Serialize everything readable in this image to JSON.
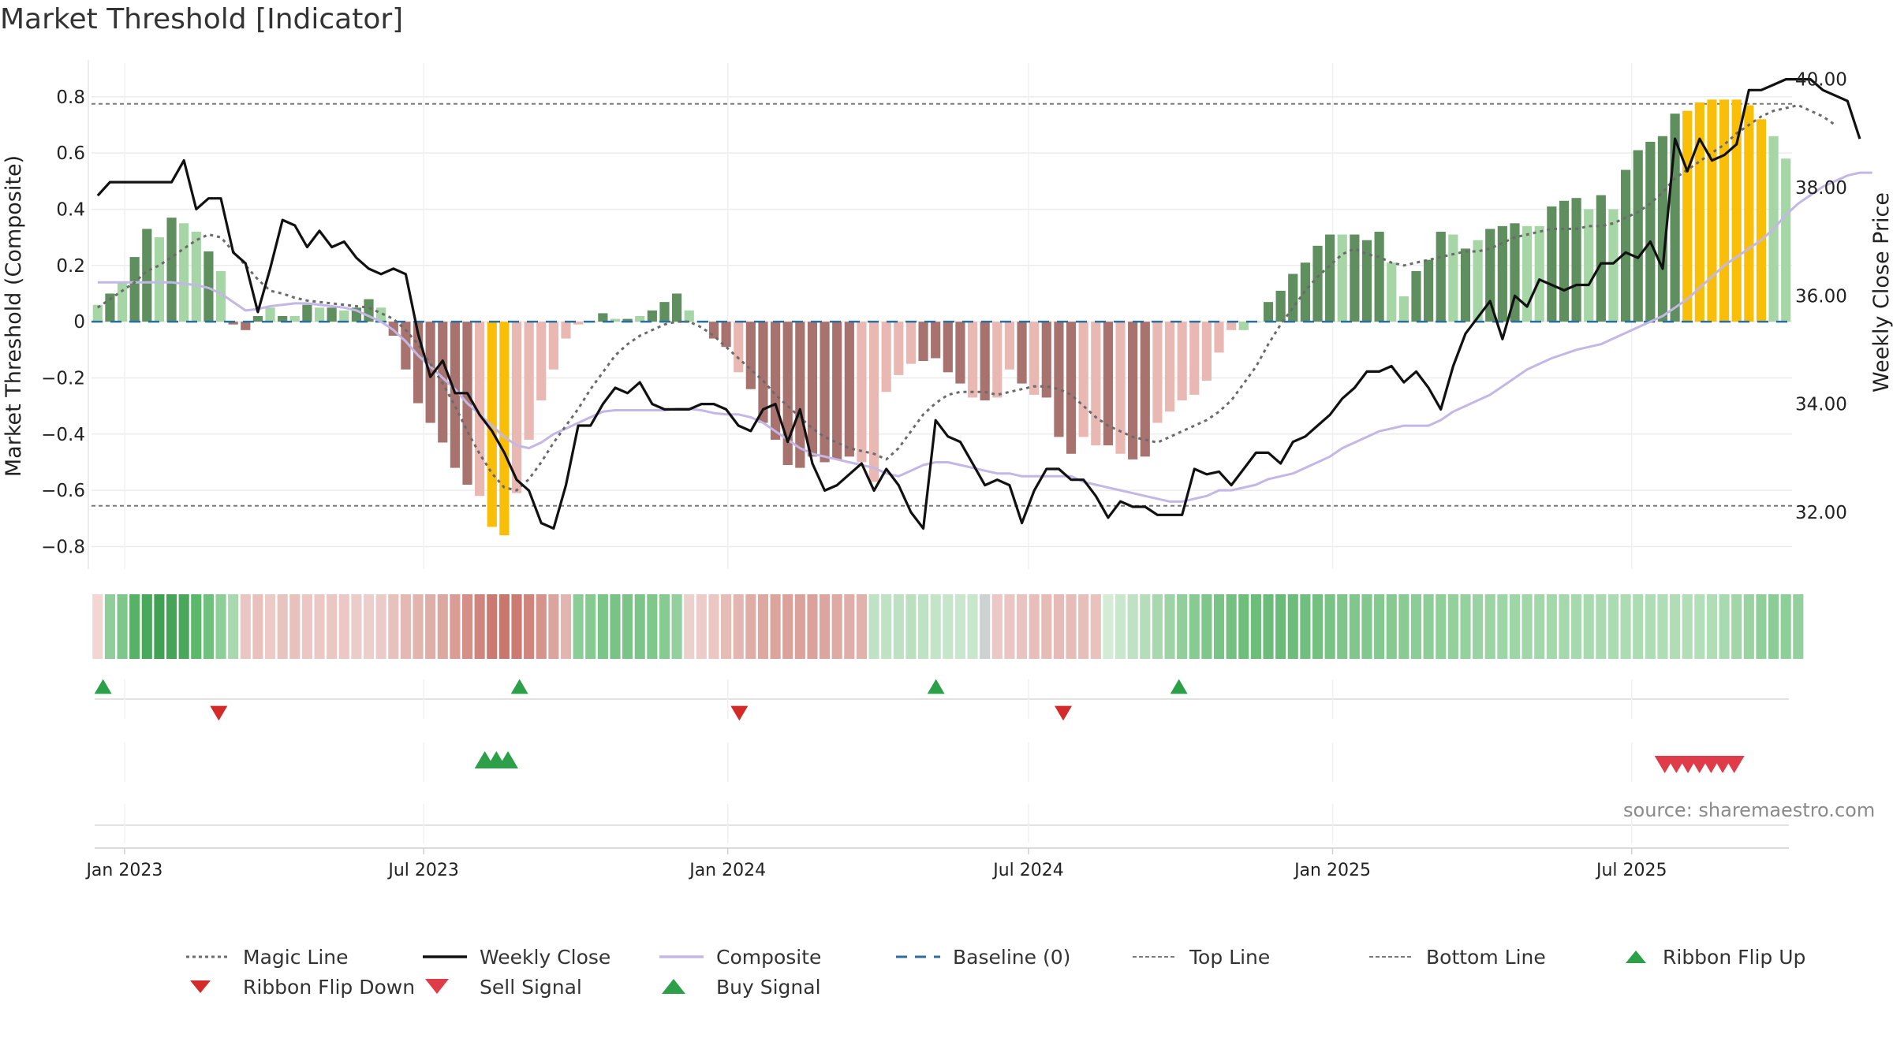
{
  "title": "Market Threshold [Indicator]",
  "source_note": "source: sharemaestro.com",
  "colors": {
    "dark_green": "#5f8e5f",
    "light_green": "#a6d5a6",
    "dark_red": "#a8736f",
    "light_red": "#e9b8b2",
    "gold": "#f9bf08",
    "weekly_close": "#111111",
    "composite": "#c3b7e6",
    "magic_line": "#6b6b6b",
    "baseline": "#2a6f9e",
    "threshold_lines": "#7a7a7a",
    "buy": "#2ca048",
    "sell": "#e03b48",
    "flip_down": "#d32a2a"
  },
  "chart_data": {
    "type": "bar",
    "title": "Market Threshold [Indicator]",
    "ylabel": "Market Threshold (Composite)",
    "y2label": "Weekly Close Price",
    "ylim": [
      -0.88,
      0.92
    ],
    "y2lim": [
      30.95,
      40.3
    ],
    "yticks": [
      0.8,
      0.6,
      0.4,
      0.2,
      0,
      -0.2,
      -0.4,
      -0.6,
      -0.8
    ],
    "ytick_labels": [
      "0.8",
      "0.6",
      "0.4",
      "0.2",
      "0",
      "−0.2",
      "−0.4",
      "−0.6",
      "−0.8"
    ],
    "y2ticks": [
      40,
      38,
      36,
      34,
      32
    ],
    "y2tick_labels": [
      "40.00",
      "38.00",
      "36.00",
      "34.00",
      "32.00"
    ],
    "top_line": 0.775,
    "bottom_line": -0.655,
    "x_range": [
      "2022-12-12",
      "2025-10-06"
    ],
    "xticks": [
      "2023-01-01",
      "2023-07-01",
      "2024-01-01",
      "2024-07-01",
      "2025-01-01",
      "2025-07-01"
    ],
    "xtick_labels": [
      "Jan 2023",
      "Jul 2023",
      "Jan 2024",
      "Jul 2024",
      "Jan 2025",
      "Jul 2025"
    ],
    "grid": true,
    "legend_placement": "bottom",
    "bars": {
      "values": [
        0.06,
        0.1,
        0.14,
        0.23,
        0.33,
        0.3,
        0.37,
        0.35,
        0.32,
        0.25,
        0.18,
        -0.01,
        -0.03,
        0.02,
        0.05,
        0.02,
        0.02,
        0.06,
        0.05,
        0.05,
        0.04,
        0.05,
        0.08,
        0.05,
        -0.05,
        -0.17,
        -0.29,
        -0.36,
        -0.43,
        -0.52,
        -0.58,
        -0.62,
        -0.73,
        -0.76,
        -0.61,
        -0.42,
        -0.28,
        -0.17,
        -0.06,
        -0.01,
        0,
        0.03,
        0.01,
        0.01,
        0.02,
        0.04,
        0.07,
        0.1,
        0.04,
        0,
        -0.06,
        -0.09,
        -0.18,
        -0.24,
        -0.36,
        -0.42,
        -0.51,
        -0.52,
        -0.48,
        -0.5,
        -0.49,
        -0.48,
        -0.5,
        -0.57,
        -0.25,
        -0.19,
        -0.15,
        -0.14,
        -0.13,
        -0.18,
        -0.22,
        -0.27,
        -0.28,
        -0.27,
        -0.17,
        -0.22,
        -0.26,
        -0.27,
        -0.41,
        -0.47,
        -0.41,
        -0.44,
        -0.44,
        -0.47,
        -0.49,
        -0.48,
        -0.36,
        -0.32,
        -0.28,
        -0.26,
        -0.21,
        -0.11,
        -0.03,
        -0.03,
        0,
        0.07,
        0.11,
        0.17,
        0.21,
        0.27,
        0.31,
        0.31,
        0.31,
        0.29,
        0.32,
        0.21,
        0.09,
        0.18,
        0.22,
        0.32,
        0.31,
        0.26,
        0.29,
        0.33,
        0.34,
        0.35,
        0.34,
        0.34,
        0.41,
        0.43,
        0.44,
        0.4,
        0.45,
        0.4,
        0.54,
        0.61,
        0.64,
        0.66,
        0.74,
        0.75,
        0.78,
        0.79,
        0.79,
        0.79,
        0.77,
        0.72,
        0.66,
        0.58
      ],
      "colors": [
        "lg",
        "dg",
        "lg",
        "dg",
        "dg",
        "lg",
        "dg",
        "lg",
        "lg",
        "dg",
        "lg",
        "dr",
        "dr",
        "dg",
        "lg",
        "dg",
        "lg",
        "dg",
        "lg",
        "dg",
        "lg",
        "dg",
        "dg",
        "lg",
        "dr",
        "dr",
        "dr",
        "dr",
        "dr",
        "dr",
        "dr",
        "lr",
        "gold",
        "gold",
        "lr",
        "lr",
        "lr",
        "lr",
        "lr",
        "lr",
        "dg",
        "dg",
        "lg",
        "dg",
        "lg",
        "dg",
        "dg",
        "dg",
        "lg",
        "dr",
        "dr",
        "dr",
        "lr",
        "dr",
        "dr",
        "dr",
        "dr",
        "dr",
        "dr",
        "dr",
        "dr",
        "dr",
        "lr",
        "lr",
        "lr",
        "lr",
        "lr",
        "dr",
        "dr",
        "dr",
        "dr",
        "lr",
        "dr",
        "lr",
        "lr",
        "dr",
        "lr",
        "dr",
        "dr",
        "dr",
        "lr",
        "lr",
        "dr",
        "lr",
        "dr",
        "dr",
        "lr",
        "lr",
        "lr",
        "lr",
        "lr",
        "lr",
        "lr",
        "lg",
        "lg",
        "dg",
        "dg",
        "dg",
        "dg",
        "dg",
        "dg",
        "lg",
        "dg",
        "dg",
        "dg",
        "lg",
        "lg",
        "dg",
        "dg",
        "dg",
        "lg",
        "dg",
        "lg",
        "dg",
        "dg",
        "dg",
        "lg",
        "lg",
        "dg",
        "dg",
        "dg",
        "lg",
        "dg",
        "lg",
        "dg",
        "dg",
        "dg",
        "dg",
        "dg",
        "gold",
        "gold",
        "gold",
        "gold",
        "gold",
        "gold",
        "gold",
        "lg",
        "lg",
        "lg"
      ]
    },
    "series": [
      {
        "name": "Weekly Close",
        "axis": "right",
        "values": [
          37.85,
          38.1,
          38.1,
          38.1,
          38.1,
          38.1,
          38.1,
          38.5,
          37.6,
          37.8,
          37.8,
          36.8,
          36.6,
          35.7,
          36.5,
          37.4,
          37.3,
          36.9,
          37.2,
          36.9,
          37,
          36.7,
          36.5,
          36.4,
          36.5,
          36.4,
          35.3,
          34.5,
          34.8,
          34.2,
          34.2,
          33.8,
          33.5,
          33.1,
          32.6,
          32.4,
          31.8,
          31.7,
          32.5,
          33.6,
          33.6,
          34,
          34.3,
          34.2,
          34.4,
          34,
          33.9,
          33.9,
          33.9,
          34,
          34,
          33.9,
          33.6,
          33.5,
          33.9,
          34,
          33.3,
          33.9,
          32.9,
          32.4,
          32.5,
          32.7,
          32.9,
          32.4,
          32.8,
          32.5,
          32,
          31.7,
          33.7,
          33.4,
          33.3,
          32.9,
          32.5,
          32.6,
          32.5,
          31.8,
          32.4,
          32.8,
          32.8,
          32.6,
          32.6,
          32.3,
          31.9,
          32.2,
          32.1,
          32.1,
          31.95,
          31.95,
          31.95,
          32.8,
          32.7,
          32.75,
          32.5,
          32.8,
          33.1,
          33.1,
          32.9,
          33.3,
          33.4,
          33.6,
          33.8,
          34.1,
          34.3,
          34.6,
          34.6,
          34.7,
          34.4,
          34.6,
          34.3,
          33.9,
          34.7,
          35.3,
          35.6,
          35.9,
          35.2,
          36,
          35.8,
          36.3,
          36.2,
          36.1,
          36.2,
          36.2,
          36.6,
          36.6,
          36.8,
          36.7,
          37,
          36.5,
          38.9,
          38.3,
          38.9,
          38.5,
          38.6,
          38.8,
          39.8,
          39.8,
          39.9,
          40,
          40,
          40,
          39.8,
          39.7,
          39.6,
          38.9
        ]
      },
      {
        "name": "Composite",
        "axis": "left",
        "values": [
          0.14,
          0.14,
          0.14,
          0.14,
          0.14,
          0.14,
          0.14,
          0.135,
          0.13,
          0.12,
          0.1,
          0.07,
          0.04,
          0.045,
          0.055,
          0.06,
          0.065,
          0.065,
          0.06,
          0.055,
          0.05,
          0.04,
          0.02,
          0,
          -0.03,
          -0.07,
          -0.12,
          -0.16,
          -0.2,
          -0.24,
          -0.29,
          -0.33,
          -0.37,
          -0.41,
          -0.44,
          -0.45,
          -0.43,
          -0.4,
          -0.38,
          -0.36,
          -0.34,
          -0.32,
          -0.315,
          -0.315,
          -0.315,
          -0.315,
          -0.315,
          -0.31,
          -0.31,
          -0.315,
          -0.325,
          -0.33,
          -0.33,
          -0.34,
          -0.36,
          -0.39,
          -0.42,
          -0.45,
          -0.47,
          -0.48,
          -0.49,
          -0.5,
          -0.51,
          -0.52,
          -0.54,
          -0.55,
          -0.53,
          -0.51,
          -0.5,
          -0.5,
          -0.51,
          -0.52,
          -0.53,
          -0.54,
          -0.54,
          -0.55,
          -0.55,
          -0.55,
          -0.55,
          -0.55,
          -0.57,
          -0.58,
          -0.59,
          -0.6,
          -0.61,
          -0.62,
          -0.63,
          -0.64,
          -0.64,
          -0.63,
          -0.62,
          -0.6,
          -0.6,
          -0.59,
          -0.58,
          -0.56,
          -0.55,
          -0.54,
          -0.52,
          -0.5,
          -0.48,
          -0.45,
          -0.43,
          -0.41,
          -0.39,
          -0.38,
          -0.37,
          -0.37,
          -0.37,
          -0.35,
          -0.32,
          -0.3,
          -0.28,
          -0.26,
          -0.23,
          -0.2,
          -0.17,
          -0.15,
          -0.13,
          -0.115,
          -0.1,
          -0.09,
          -0.08,
          -0.06,
          -0.04,
          -0.02,
          0,
          0.02,
          0.05,
          0.08,
          0.12,
          0.16,
          0.2,
          0.23,
          0.26,
          0.29,
          0.33,
          0.38,
          0.42,
          0.45,
          0.48,
          0.5,
          0.52,
          0.53,
          0.53
        ]
      },
      {
        "name": "Magic Line",
        "axis": "left",
        "values": [
          0.05,
          0.08,
          0.11,
          0.14,
          0.18,
          0.2,
          0.23,
          0.26,
          0.29,
          0.31,
          0.3,
          0.25,
          0.2,
          0.15,
          0.11,
          0.1,
          0.085,
          0.075,
          0.07,
          0.065,
          0.06,
          0.055,
          0.05,
          0.03,
          0.01,
          -0.03,
          -0.08,
          -0.15,
          -0.22,
          -0.3,
          -0.39,
          -0.47,
          -0.54,
          -0.59,
          -0.6,
          -0.56,
          -0.5,
          -0.43,
          -0.37,
          -0.31,
          -0.24,
          -0.18,
          -0.12,
          -0.08,
          -0.05,
          -0.03,
          -0.01,
          0,
          0,
          -0.02,
          -0.05,
          -0.09,
          -0.13,
          -0.17,
          -0.21,
          -0.26,
          -0.3,
          -0.34,
          -0.38,
          -0.41,
          -0.43,
          -0.45,
          -0.46,
          -0.47,
          -0.49,
          -0.45,
          -0.39,
          -0.33,
          -0.29,
          -0.26,
          -0.25,
          -0.25,
          -0.25,
          -0.26,
          -0.25,
          -0.24,
          -0.23,
          -0.23,
          -0.24,
          -0.26,
          -0.3,
          -0.34,
          -0.37,
          -0.39,
          -0.41,
          -0.42,
          -0.43,
          -0.41,
          -0.39,
          -0.37,
          -0.35,
          -0.32,
          -0.28,
          -0.22,
          -0.16,
          -0.08,
          -0.01,
          0.05,
          0.11,
          0.16,
          0.2,
          0.24,
          0.26,
          0.24,
          0.23,
          0.21,
          0.2,
          0.21,
          0.22,
          0.23,
          0.24,
          0.25,
          0.25,
          0.26,
          0.28,
          0.3,
          0.31,
          0.32,
          0.33,
          0.33,
          0.33,
          0.34,
          0.34,
          0.35,
          0.37,
          0.39,
          0.42,
          0.46,
          0.51,
          0.54,
          0.57,
          0.6,
          0.63,
          0.67,
          0.7,
          0.73,
          0.75,
          0.76,
          0.77,
          0.75,
          0.73,
          0.7
        ]
      }
    ],
    "baseline": 0,
    "ribbon": {
      "colors": [
        "#f2d6d4",
        "#8fce9a",
        "#7fc68b",
        "#57b267",
        "#4aa85c",
        "#41a153",
        "#45a457",
        "#4aa85c",
        "#5ab86b",
        "#6fc07c",
        "#8ecf99",
        "#a8d9ae",
        "#e9c6c3",
        "#e8c1bd",
        "#eccac6",
        "#e8c4c0",
        "#e8c0bc",
        "#ebc6c2",
        "#ecc8c5",
        "#ebc7c4",
        "#ebc8c5",
        "#eaccc8",
        "#eccecb",
        "#ebcbc8",
        "#e7c1bc",
        "#e4b9b4",
        "#e2b4ae",
        "#dfaea8",
        "#dca8a2",
        "#d99d96",
        "#d38f88",
        "#cf857d",
        "#cb7a71",
        "#c9766d",
        "#cb7b72",
        "#cf857d",
        "#d5938c",
        "#dba49e",
        "#e3b5b0",
        "#8ccd97",
        "#86ca91",
        "#7cc589",
        "#78c385",
        "#79c486",
        "#7bc588",
        "#80c78c",
        "#87ca92",
        "#94d09e",
        "#ecd0cc",
        "#eccbc8",
        "#ebc6c2",
        "#e6bcb7",
        "#e4b6b1",
        "#e0aca6",
        "#dea7a0",
        "#dca49d",
        "#dba29b",
        "#dba29b",
        "#dba29b",
        "#dda59f",
        "#deaaa3",
        "#e0aea8",
        "#e1b1ab",
        "#c0e2c4",
        "#bfe2c4",
        "#bde1c2",
        "#bbe0c0",
        "#bfe2c4",
        "#c3e4c7",
        "#c6e6ca",
        "#c8e7cc",
        "#c7e6cb",
        "#ccd2d1",
        "#ebc8c5",
        "#eac5c1",
        "#e9c3bf",
        "#e7beb9",
        "#e6bcb7",
        "#e6bab6",
        "#e6bcb7",
        "#e7beb9",
        "#e8c2bd",
        "#d4ecd6",
        "#c9e7cc",
        "#bfe2c4",
        "#b5ddba",
        "#a8d8ae",
        "#9dd3a5",
        "#91ce9b",
        "#87ca92",
        "#7ec68a",
        "#78c385",
        "#73c080",
        "#6fbe7c",
        "#6bbd79",
        "#6abc78",
        "#69bb77",
        "#6cbd7a",
        "#70bf7e",
        "#74c081",
        "#79c385",
        "#7ec68a",
        "#81c78d",
        "#82c88e",
        "#84c990",
        "#86ca91",
        "#88cb93",
        "#8bcd96",
        "#8dce98",
        "#90cf9a",
        "#93d09c",
        "#95d19f",
        "#98d3a1",
        "#9ad4a3",
        "#9dd5a6",
        "#9fd6a7",
        "#a0d6a8",
        "#a2d7aa",
        "#a3d8ab",
        "#a5d8ac",
        "#a6d9ad",
        "#a8daaf",
        "#a9dab0",
        "#aadbb1",
        "#acdcb2",
        "#addcb3",
        "#aedcb4",
        "#afddb5",
        "#b0ddb6",
        "#b1deb7",
        "#b2deb8",
        "#b0ddb6",
        "#a8daaf",
        "#a0d6a8",
        "#98d3a1",
        "#91cf9a",
        "#8ccd97",
        "#8ecf99",
        "#94d09e"
      ]
    },
    "signals": {
      "ribbon_flip_up": [
        "2022-12-19",
        "2023-08-28",
        "2024-05-06",
        "2024-09-30"
      ],
      "ribbon_flip_down": [
        "2023-02-27",
        "2024-01-08",
        "2024-07-22"
      ],
      "buy": [
        "2023-08-07",
        "2023-08-14",
        "2023-08-21"
      ],
      "sell": [
        "2025-07-21",
        "2025-07-28",
        "2025-08-04",
        "2025-08-11",
        "2025-08-18",
        "2025-08-25",
        "2025-09-01"
      ]
    }
  },
  "legend": {
    "items": [
      {
        "label": "Magic Line"
      },
      {
        "label": "Weekly Close"
      },
      {
        "label": "Composite"
      },
      {
        "label": "Baseline (0)"
      },
      {
        "label": "Top Line"
      },
      {
        "label": "Bottom Line"
      },
      {
        "label": "Ribbon Flip Up"
      },
      {
        "label": "Ribbon Flip Down"
      },
      {
        "label": "Sell Signal"
      },
      {
        "label": "Buy Signal"
      }
    ]
  }
}
